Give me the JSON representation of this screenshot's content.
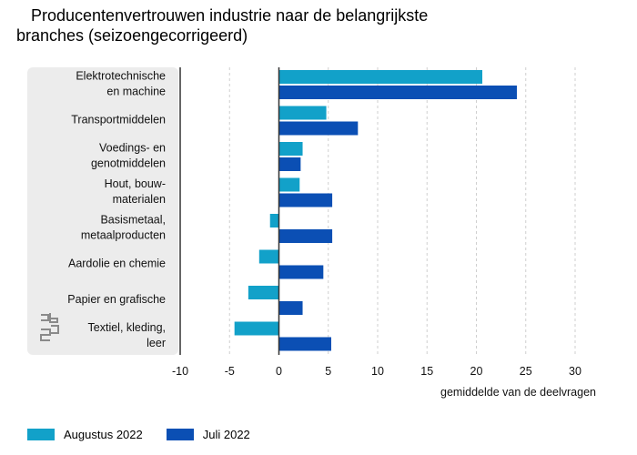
{
  "title": {
    "line1": "Producentenvertrouwen industrie naar de belangrijkste",
    "line2": "branches (seizoengecorrigeerd)"
  },
  "colors": {
    "aug": "#12a1c9",
    "jul": "#0b4fb4",
    "panel": "#ececec",
    "grid": "#cfcfcf",
    "axis": "#333333"
  },
  "logo_icon": "cbs-logo-icon",
  "chart_data": {
    "type": "bar",
    "orientation": "horizontal",
    "title": "Producentenvertrouwen industrie naar de belangrijkste branches (seizoengecorrigeerd)",
    "xlabel": "gemiddelde van de deelvragen",
    "xlim": [
      -10,
      30
    ],
    "xticks": [
      "-10",
      "-5",
      "0",
      "5",
      "10",
      "15",
      "20",
      "25",
      "30"
    ],
    "grid": "vertical-dashed",
    "legend_position": "bottom-left",
    "categories": [
      [
        "Elektrotechnische",
        "en machine"
      ],
      [
        "Transportmiddelen"
      ],
      [
        "Voedings- en",
        "genotmiddelen"
      ],
      [
        "Hout, bouw-",
        "materialen"
      ],
      [
        "Basismetaal,",
        "metaalproducten"
      ],
      [
        "Aardolie en chemie"
      ],
      [
        "Papier en grafische"
      ],
      [
        "Textiel, kleding,",
        "leer"
      ]
    ],
    "series": [
      {
        "name": "Augustus 2022",
        "color": "#12a1c9",
        "values": [
          20.6,
          4.8,
          2.4,
          2.1,
          -0.9,
          -2.0,
          -3.1,
          -4.5
        ]
      },
      {
        "name": "Juli 2022",
        "color": "#0b4fb4",
        "values": [
          24.1,
          8.0,
          2.2,
          5.4,
          5.4,
          4.5,
          2.4,
          5.3
        ]
      }
    ]
  }
}
